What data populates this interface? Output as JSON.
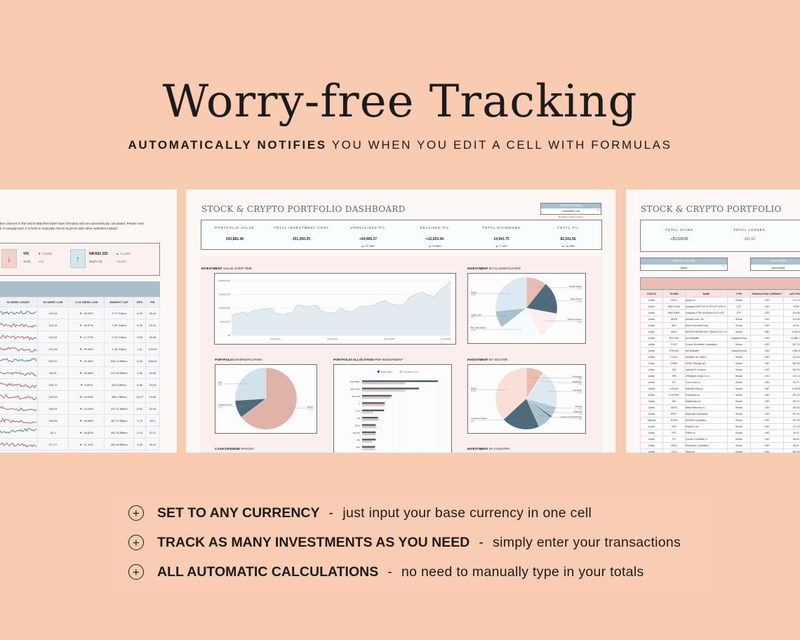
{
  "hero": {
    "title": "Worry-free Tracking",
    "subtitle_bold": "AUTOMATICALLY NOTIFIES",
    "subtitle_rest": " YOU WHEN YOU EDIT A CELL WITH FORMULAS"
  },
  "colors": {
    "background": "#f9cbb0",
    "navy": "#4e6b7b",
    "pink": "#e6b5aa",
    "lightblue": "#dce9f2",
    "steel": "#a9c0cd"
  },
  "features": [
    {
      "icon": "plus-circle-icon",
      "title": "SET TO ANY CURRENCY",
      "desc": "just input your base currency in one cell"
    },
    {
      "icon": "plus-circle-icon",
      "title": "TRACK AS MANY INVESTMENTS AS YOU NEED",
      "desc": "simply enter your transactions"
    },
    {
      "icon": "plus-circle-icon",
      "title": "ALL AUTOMATIC CALCULATIONS",
      "desc": "no need to manually type in your totals"
    }
  ],
  "left": {
    "note1": "the columns in the Stock Watchlist table have formulas and are automatically calculated. Please note",
    "note2": "k is unsupported, it is best to manually check its prices with other websites instead.",
    "indices": [
      {
        "name": "VIX",
        "change_pct": "▼ -3.32%",
        "value": "19.53",
        "change": "-0.67",
        "icon": "arrow-down-icon"
      },
      {
        "name": "NIKKEI 225",
        "change_pct": "▲ +1.14%",
        "value": "28,871.78",
        "change": "+324.80",
        "icon": "arrow-up-icon"
      }
    ],
    "columns": [
      "52 WEEK CHART",
      "52 WEEK LOW",
      "% 52 WEEK LOW",
      "MARKET CAP",
      "EPS",
      "P/E"
    ],
    "rows": [
      [
        "129.04",
        "▼ -25.02%",
        "2.77 Trillion",
        "6.05",
        "28.44"
      ],
      [
        "102.21",
        "▼ -16.67%",
        "1.59 Trillion",
        "5.28",
        "23.24"
      ],
      [
        "241.51",
        "▼ -17.27%",
        "2.18 Trillion",
        "9.65",
        "30.26"
      ],
      [
        "101.26",
        "▼ -29.46%",
        "1.46 Trillion",
        "1.11",
        "129.09"
      ],
      [
        "620.57",
        "▼ -31.06%",
        "940.14 Billion",
        "8.33",
        "108.04"
      ],
      [
        "68.39",
        "▼ -22.56%",
        "101.33 Billion",
        "3.56",
        "24.83"
      ],
      [
        "155.72",
        "▼ -5.60%",
        "434.6 Billion",
        "6.88",
        "24.03"
      ],
      [
        "154.25",
        "▼ -14.54%",
        "485.1 Billion",
        "12.07",
        "14.86"
      ],
      [
        "185.91",
        "▼ -12.03%",
        "437.21 Billion",
        "6.52",
        "32.43"
      ],
      [
        "140.55",
        "▼ -24.88%",
        "467.72 Billion",
        "3.73",
        "50.2"
      ],
      [
        "52.1",
        "▼ -44.82%",
        "391.76 Billion",
        "9.15",
        "10.27"
      ],
      [
        "117.27",
        "▼ -11.31%",
        "362.43 Billion",
        "4.65",
        "28.41"
      ]
    ]
  },
  "center": {
    "title": "STOCK & CRYPTO PORTFOLIO DASHBOARD",
    "dropdown": {
      "label": "CHART BY VALUE",
      "value": "Cumulative Cost",
      "note": "all values in base currency"
    },
    "kpis": [
      {
        "label": "PORTFOLIO VALUE",
        "value": "243,881.46",
        "change": ""
      },
      {
        "label": "TOTAL INVESTMENT COST",
        "value": "201,050.25",
        "change": ""
      },
      {
        "label": "UNREALIZED P/L",
        "value": "+54,996.37",
        "change": "▲ +27.35%"
      },
      {
        "label": "REALIZED P/L",
        "value": "+12,603.44",
        "change": "▲ +24.56%"
      },
      {
        "label": "TOTAL DIVIDENDS",
        "value": "14,941.75",
        "change": "▲ +7.43%"
      },
      {
        "label": "TOTAL P/L",
        "value": "82,541.56",
        "change": "▲ +41.06%"
      }
    ],
    "sections": {
      "value_over_time": [
        "INVESTMENT",
        "VALUE OVER TIME"
      ],
      "classification": [
        "INVESTMENT",
        "BY CLASSIFICATION"
      ],
      "diversification": [
        "PORTFOLIO",
        "DIVERSIFICATION"
      ],
      "allocation": [
        "PORTFOLIO ALLOCATION",
        "PER INVESTMENT"
      ],
      "sector": [
        "INVESTMENT",
        "BY SECTOR"
      ],
      "dividend": [
        "CASH DIVIDEND",
        "PAYOUT"
      ],
      "country": [
        "INVESTMENT",
        "BY COUNTRY"
      ]
    }
  },
  "chart_data": [
    {
      "type": "area",
      "ylim": [
        0,
        20000000
      ],
      "yticks": [
        "$0",
        "5,000,000.00",
        "10,000,000.00",
        "15,000,000.00",
        "20,000,000.00"
      ],
      "xticks": [
        "21 Aug 2022",
        "04 Sep 2022",
        "18 Sep 2022",
        "02 Oct 2022"
      ],
      "values": [
        7000000,
        8000000,
        8100000,
        8700000,
        7600000,
        9000000,
        9200000,
        9400000,
        9600000,
        9800000,
        10000000,
        8000000,
        7800000,
        7500000,
        8300000,
        8100000,
        11000000,
        11100000,
        10500000,
        10700000,
        10900000,
        11000000,
        9100000,
        8500000,
        8300000,
        8100000,
        8800000,
        10000000,
        9000000,
        8800000,
        8600000,
        10000000,
        10500000,
        10700000,
        10800000,
        11000000,
        11900000,
        12500000,
        12700000,
        11800000,
        11300000,
        11100000,
        10900000,
        12300000,
        14000000,
        14700000,
        15300000,
        15900000,
        15000000,
        14600000,
        14100000,
        16000000,
        17200000,
        18200000,
        20000000
      ]
    },
    {
      "type": "pie",
      "slices": [
        {
          "label": "Growth Stocks",
          "value": 10.7
        },
        {
          "label": "Value Stocks",
          "value": 17.2
        },
        {
          "label": "Dividend Stocks",
          "value": 14.3
        },
        {
          "label": "Blue Chip Stocks",
          "value": 22.3
        },
        {
          "label": "Crypto Coin",
          "value": 8.9
        },
        {
          "label": "Others",
          "value": 26.6
        }
      ],
      "colors": [
        "#e9bdb2",
        "#4e6b7b",
        "#fbeeec",
        "#f5fbff",
        "#a9c0cd",
        "#dce9f2"
      ]
    },
    {
      "type": "pie",
      "slices": [
        {
          "label": "Stocks",
          "value": 64.7
        },
        {
          "label": "Cryptocurrency",
          "value": 9.3
        },
        {
          "label": "ETF",
          "value": 26.0
        }
      ],
      "colors": [
        "#e0b3a9",
        "#4e6b7b",
        "#d2e1ea"
      ]
    },
    {
      "type": "bar",
      "legend": [
        "Market Value",
        "Cumulative Cost"
      ],
      "categories": [
        "AMS:VWRL",
        "AMS:VUSA",
        "BTCUSD",
        "V",
        "TSLA",
        "JNJ",
        "SBUX",
        "LON:NG",
        "MA",
        "PEP",
        "LON:PRU"
      ],
      "series": [
        {
          "name": "Market Value",
          "values": [
            100,
            75,
            39,
            30,
            29,
            21,
            18,
            18,
            18,
            17,
            15
          ]
        },
        {
          "name": "Cumulative Cost",
          "values": [
            57,
            57,
            37,
            30,
            15,
            22,
            19,
            18,
            13,
            17,
            16
          ]
        }
      ]
    },
    {
      "type": "pie",
      "slices": [
        {
          "label": "Technology",
          "value": 9.2
        },
        {
          "label": "Healthcare",
          "value": 0.7
        },
        {
          "label": "Financials",
          "value": 19.5
        },
        {
          "label": "Energy",
          "value": 5.2
        },
        {
          "label": "Materials",
          "value": 1.0
        },
        {
          "label": "Consumer Discretionary",
          "value": 7.6
        },
        {
          "label": "Consumer Staples",
          "value": 20.0
        },
        {
          "label": "Others",
          "value": 36.8
        }
      ],
      "colors": [
        "#e9bdb2",
        "#fbeeec",
        "#dce9f2",
        "#b3cbd8",
        "#4e6b7b",
        "#a9c0cd",
        "#4e6b7b",
        "#f8dfda"
      ]
    }
  ],
  "right": {
    "title": "STOCK & CRYPTO PORTFOLIO",
    "total_gains_label": "TOTAL GAINS",
    "total_gains": "+83,528.83",
    "total_losses_label": "TOTAL LOSSES",
    "total_losses": "-811.51",
    "sort_column": {
      "label": "SORT BY COLUMN",
      "value": "Ticker"
    },
    "sort_order": {
      "label": "SORT ORDER",
      "value": "Ascending"
    },
    "columns": [
      "STATUS",
      "TICKER",
      "NAME",
      "TYPE",
      "TRANSACTING CURRENCY",
      "LAST PRICE"
    ],
    "rows": [
      [
        "Active",
        "AAPL",
        "Apple Inc",
        "Stocks",
        "USD",
        "172.10"
      ],
      [
        "Active",
        "AMS:VUSA",
        "Vanguard S&P 500 UCITS ETF USD D",
        "ETF",
        "USD",
        "78.56"
      ],
      [
        "Active",
        "AMS:VWRL",
        "Vanguard FTSE All-World UCITS ETF",
        "ETF",
        "USD",
        "104.86"
      ],
      [
        "Active",
        "AMZN",
        "Amazon.com, Inc.",
        "Stocks",
        "USD",
        "143.55"
      ],
      [
        "Active",
        "BAC",
        "Bank of America Corp",
        "Stocks",
        "USD",
        "36.90"
      ],
      [
        "Active",
        "BATS",
        "BRITISH AMERICAN TOBACCO PLC A",
        "Stocks",
        "GBP",
        "3,329.00"
      ],
      [
        "Active",
        "BTCUSD",
        "Not Available",
        "Cryptocurrency",
        "USD",
        "24,890.70"
      ],
      [
        "Active",
        "COST",
        "Costco Wholesale Corporation",
        "Stocks",
        "USD",
        "537.21"
      ],
      [
        "Active",
        "ETHUSD",
        "Not Available",
        "Cryptocurrency",
        "USD",
        "1,986.30"
      ],
      [
        "Active",
        "GOOG",
        "Alphabet Inc Class C",
        "Stocks",
        "USD",
        "122.83"
      ],
      [
        "Active",
        "HSBA",
        "HSBC Holdings plc",
        "Stocks",
        "GBP",
        "550.60"
      ],
      [
        "Active",
        "JNJ",
        "Johnson & Johnson",
        "Stocks",
        "USD",
        "165.30"
      ],
      [
        "Active",
        "JPM",
        "JPMorgan Chase & Co",
        "Stocks",
        "USD",
        "122.13"
      ],
      [
        "Active",
        "KO",
        "Coca-Cola Co",
        "Stocks",
        "USD",
        "63.70"
      ],
      [
        "Active",
        "LON:NG",
        "National Grid plc",
        "Stocks",
        "GBP",
        "1,135.50"
      ],
      [
        "Active",
        "LON:PRU",
        "Prudential plc",
        "Stocks",
        "GBP",
        "991.30"
      ],
      [
        "Active",
        "MA",
        "Mastercard Inc",
        "Stocks",
        "USD",
        "354.27"
      ],
      [
        "Active",
        "META",
        "Meta Platforms Inc",
        "Stocks",
        "USD",
        "180.50"
      ],
      [
        "Active",
        "MSFT",
        "Microsoft Corporation",
        "Stocks",
        "USD",
        "291.91"
      ],
      [
        "Inactive",
        "NVDA",
        "NVIDIA Corporation",
        "Stocks",
        "USD",
        "197.09"
      ],
      [
        "Active",
        "PEP",
        "PepsiCo, Inc",
        "Stocks",
        "USD",
        "177.33"
      ],
      [
        "Active",
        "PFE",
        "Pfizer Inc",
        "Stocks",
        "USD",
        "50.11"
      ],
      [
        "Active",
        "PG",
        "Procter & Gamble Co",
        "Stocks",
        "USD",
        "146.67"
      ],
      [
        "Active",
        "SBUX",
        "Starbucks Corporation",
        "Stocks",
        "USD",
        "88.21"
      ],
      [
        "Active",
        "TSLA",
        "Tesla Inc",
        "Stocks",
        "USD",
        "900.09"
      ]
    ]
  }
}
